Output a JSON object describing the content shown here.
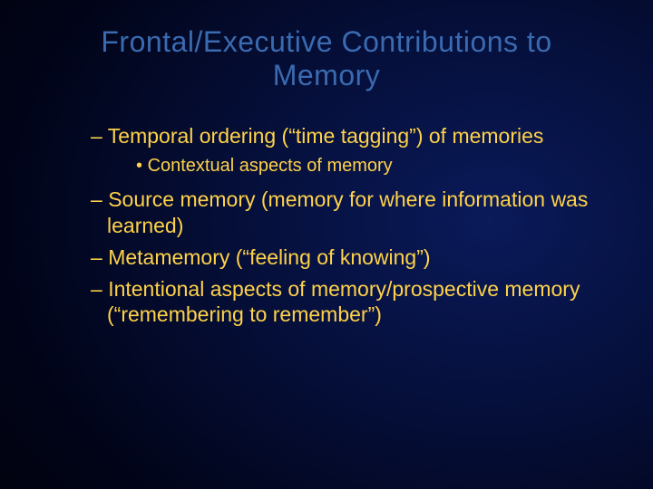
{
  "slide": {
    "background_gradient": {
      "type": "radial",
      "stops": [
        "#0a1a5a",
        "#050f3a",
        "#010418",
        "#000000"
      ]
    },
    "title_color": "#3a6ab0",
    "body_color": "#ffd24a",
    "title_fontsize": 32,
    "dash_fontsize": 23,
    "bullet_fontsize": 20,
    "font_family": "Verdana",
    "title": "Frontal/Executive Contributions to Memory",
    "items": [
      {
        "level": "dash",
        "text": "Temporal ordering (“time tagging”) of memories"
      },
      {
        "level": "bullet",
        "text": "Contextual aspects of memory"
      },
      {
        "level": "dash",
        "text": "Source memory (memory for where information was learned)"
      },
      {
        "level": "dash",
        "text": "Metamemory (“feeling of knowing”)"
      },
      {
        "level": "dash",
        "text": "Intentional aspects of memory/prospective memory (“remembering to remember”)"
      }
    ]
  }
}
